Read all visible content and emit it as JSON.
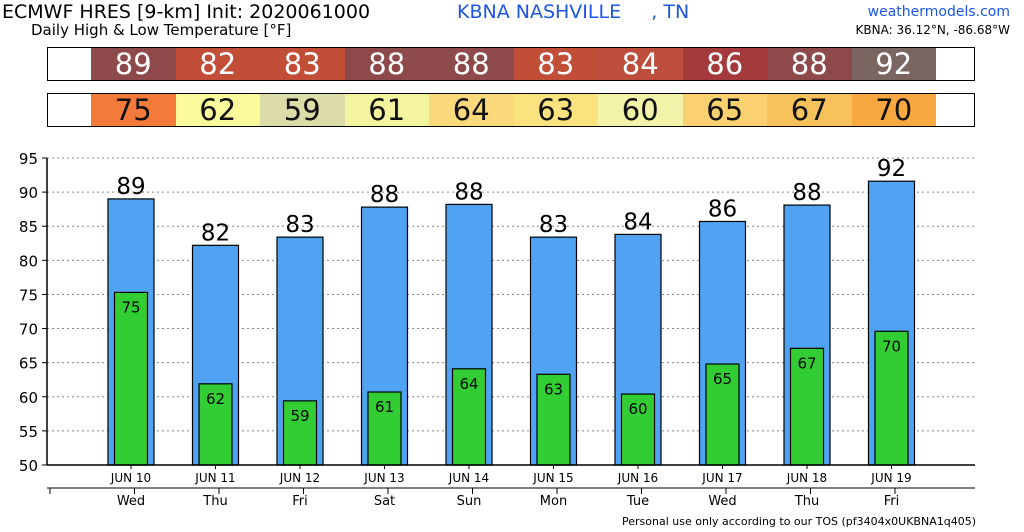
{
  "header": {
    "title": "ECMWF HRES [9-km] Init: 2020061000",
    "subtitle": "Daily High & Low Temperature [°F]",
    "station": "KBNA NASHVILLE     , TN",
    "credit": "weathermodels.com",
    "coords": "KBNA: 36.12°N, -86.68°W"
  },
  "footer": "Personal use only according to our TOS (pf3404x0UKBNA1q405)",
  "strips": {
    "high": {
      "values": [
        "89",
        "82",
        "83",
        "88",
        "88",
        "83",
        "84",
        "86",
        "88",
        "92"
      ],
      "colors": [
        "#8e4a4a",
        "#c24e38",
        "#c24e38",
        "#8e4a4a",
        "#8e4a4a",
        "#c24e38",
        "#bd4d3c",
        "#a53a3c",
        "#8e4a4a",
        "#7a6560"
      ]
    },
    "low": {
      "values": [
        "75",
        "62",
        "59",
        "61",
        "64",
        "63",
        "60",
        "65",
        "67",
        "70"
      ],
      "colors": [
        "#f47a3c",
        "#fafa9c",
        "#dcdca8",
        "#f4f49e",
        "#fad97a",
        "#fae27e",
        "#f2f2a8",
        "#fad070",
        "#f8c25a",
        "#f7a840"
      ]
    }
  },
  "chart_data": {
    "type": "bar",
    "categories": [
      "JUN 10",
      "JUN 11",
      "JUN 12",
      "JUN 13",
      "JUN 14",
      "JUN 15",
      "JUN 16",
      "JUN 17",
      "JUN 18",
      "JUN 19"
    ],
    "weekdays": [
      "Wed",
      "Thu",
      "Fri",
      "Sat",
      "Sun",
      "Mon",
      "Tue",
      "Wed",
      "Thu",
      "Fri"
    ],
    "series": [
      {
        "name": "",
        "values": [
          89,
          82,
          83,
          88,
          88,
          83,
          84,
          86,
          88,
          92
        ],
        "plot_values": [
          89.0,
          82.2,
          83.4,
          87.8,
          88.2,
          83.4,
          83.8,
          85.7,
          88.1,
          91.6
        ],
        "color": "#4fa3f2"
      },
      {
        "name": "",
        "values": [
          75,
          62,
          59,
          61,
          64,
          63,
          60,
          65,
          67,
          70
        ],
        "plot_values": [
          75.3,
          61.9,
          59.4,
          60.7,
          64.1,
          63.3,
          60.4,
          64.8,
          67.1,
          69.6
        ],
        "color": "#32cd32"
      }
    ],
    "yticks": [
      50,
      55,
      60,
      65,
      70,
      75,
      80,
      85,
      90,
      95
    ],
    "ylim": [
      50,
      95
    ],
    "grid": true,
    "xlabel": "",
    "ylabel": "",
    "title": ""
  }
}
